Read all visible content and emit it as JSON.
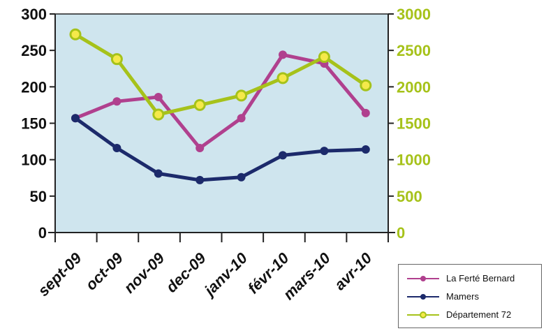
{
  "colors": {
    "plot_background": "#cfe5ee",
    "frame": "#222222",
    "right_axis": "#a6c21a",
    "left_axis_text": "#111111"
  },
  "chart_data": {
    "type": "line",
    "categories": [
      "sept-09",
      "oct-09",
      "nov-09",
      "dec-09",
      "janv-10",
      "févr-10",
      "mars-10",
      "avr-10"
    ],
    "title": "",
    "xlabel": "",
    "ylabel": "",
    "ylim": [
      0,
      300
    ],
    "y2lim": [
      0,
      3000
    ],
    "yticks": [
      "0",
      "50",
      "100",
      "150",
      "200",
      "250",
      "300"
    ],
    "y2ticks": [
      "0",
      "500",
      "1000",
      "1500",
      "2000",
      "2500",
      "3000"
    ],
    "grid": false,
    "legend_position": "bottom-right",
    "series": [
      {
        "name": "La Ferté Bernard",
        "axis": "left",
        "color": "#b0408e",
        "values": [
          157,
          180,
          186,
          116,
          157,
          244,
          232,
          164
        ]
      },
      {
        "name": "Mamers",
        "axis": "left",
        "color": "#1c2a6b",
        "values": [
          157,
          116,
          81,
          72,
          76,
          106,
          112,
          114
        ]
      },
      {
        "name": "Département 72",
        "axis": "right",
        "color": "#a6c21a",
        "values": [
          2720,
          2380,
          1620,
          1750,
          1880,
          2120,
          2410,
          2020
        ]
      }
    ]
  }
}
